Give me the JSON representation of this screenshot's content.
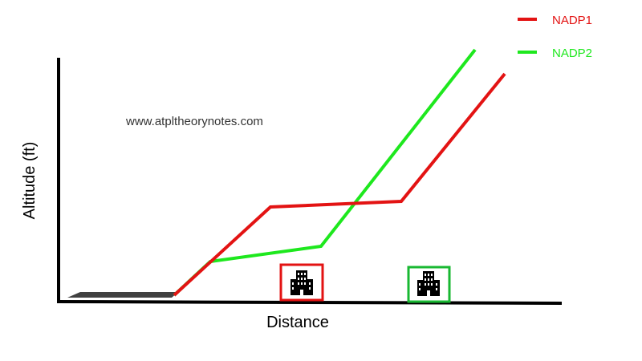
{
  "diagram": {
    "watermark": "www.atpltheorynotes.com",
    "axes": {
      "y_label": "Altitude (ft)",
      "x_label": "Distance"
    },
    "legend": [
      {
        "name": "NADP1",
        "color": "#e31313"
      },
      {
        "name": "NADP2",
        "color": "#1ee81e"
      }
    ],
    "runway_color": "#404040",
    "building_icon": "office-building-icon",
    "obstacles": [
      {
        "marker": "red-box",
        "color": "#e31313"
      },
      {
        "marker": "green-box",
        "color": "#18b832"
      }
    ]
  }
}
